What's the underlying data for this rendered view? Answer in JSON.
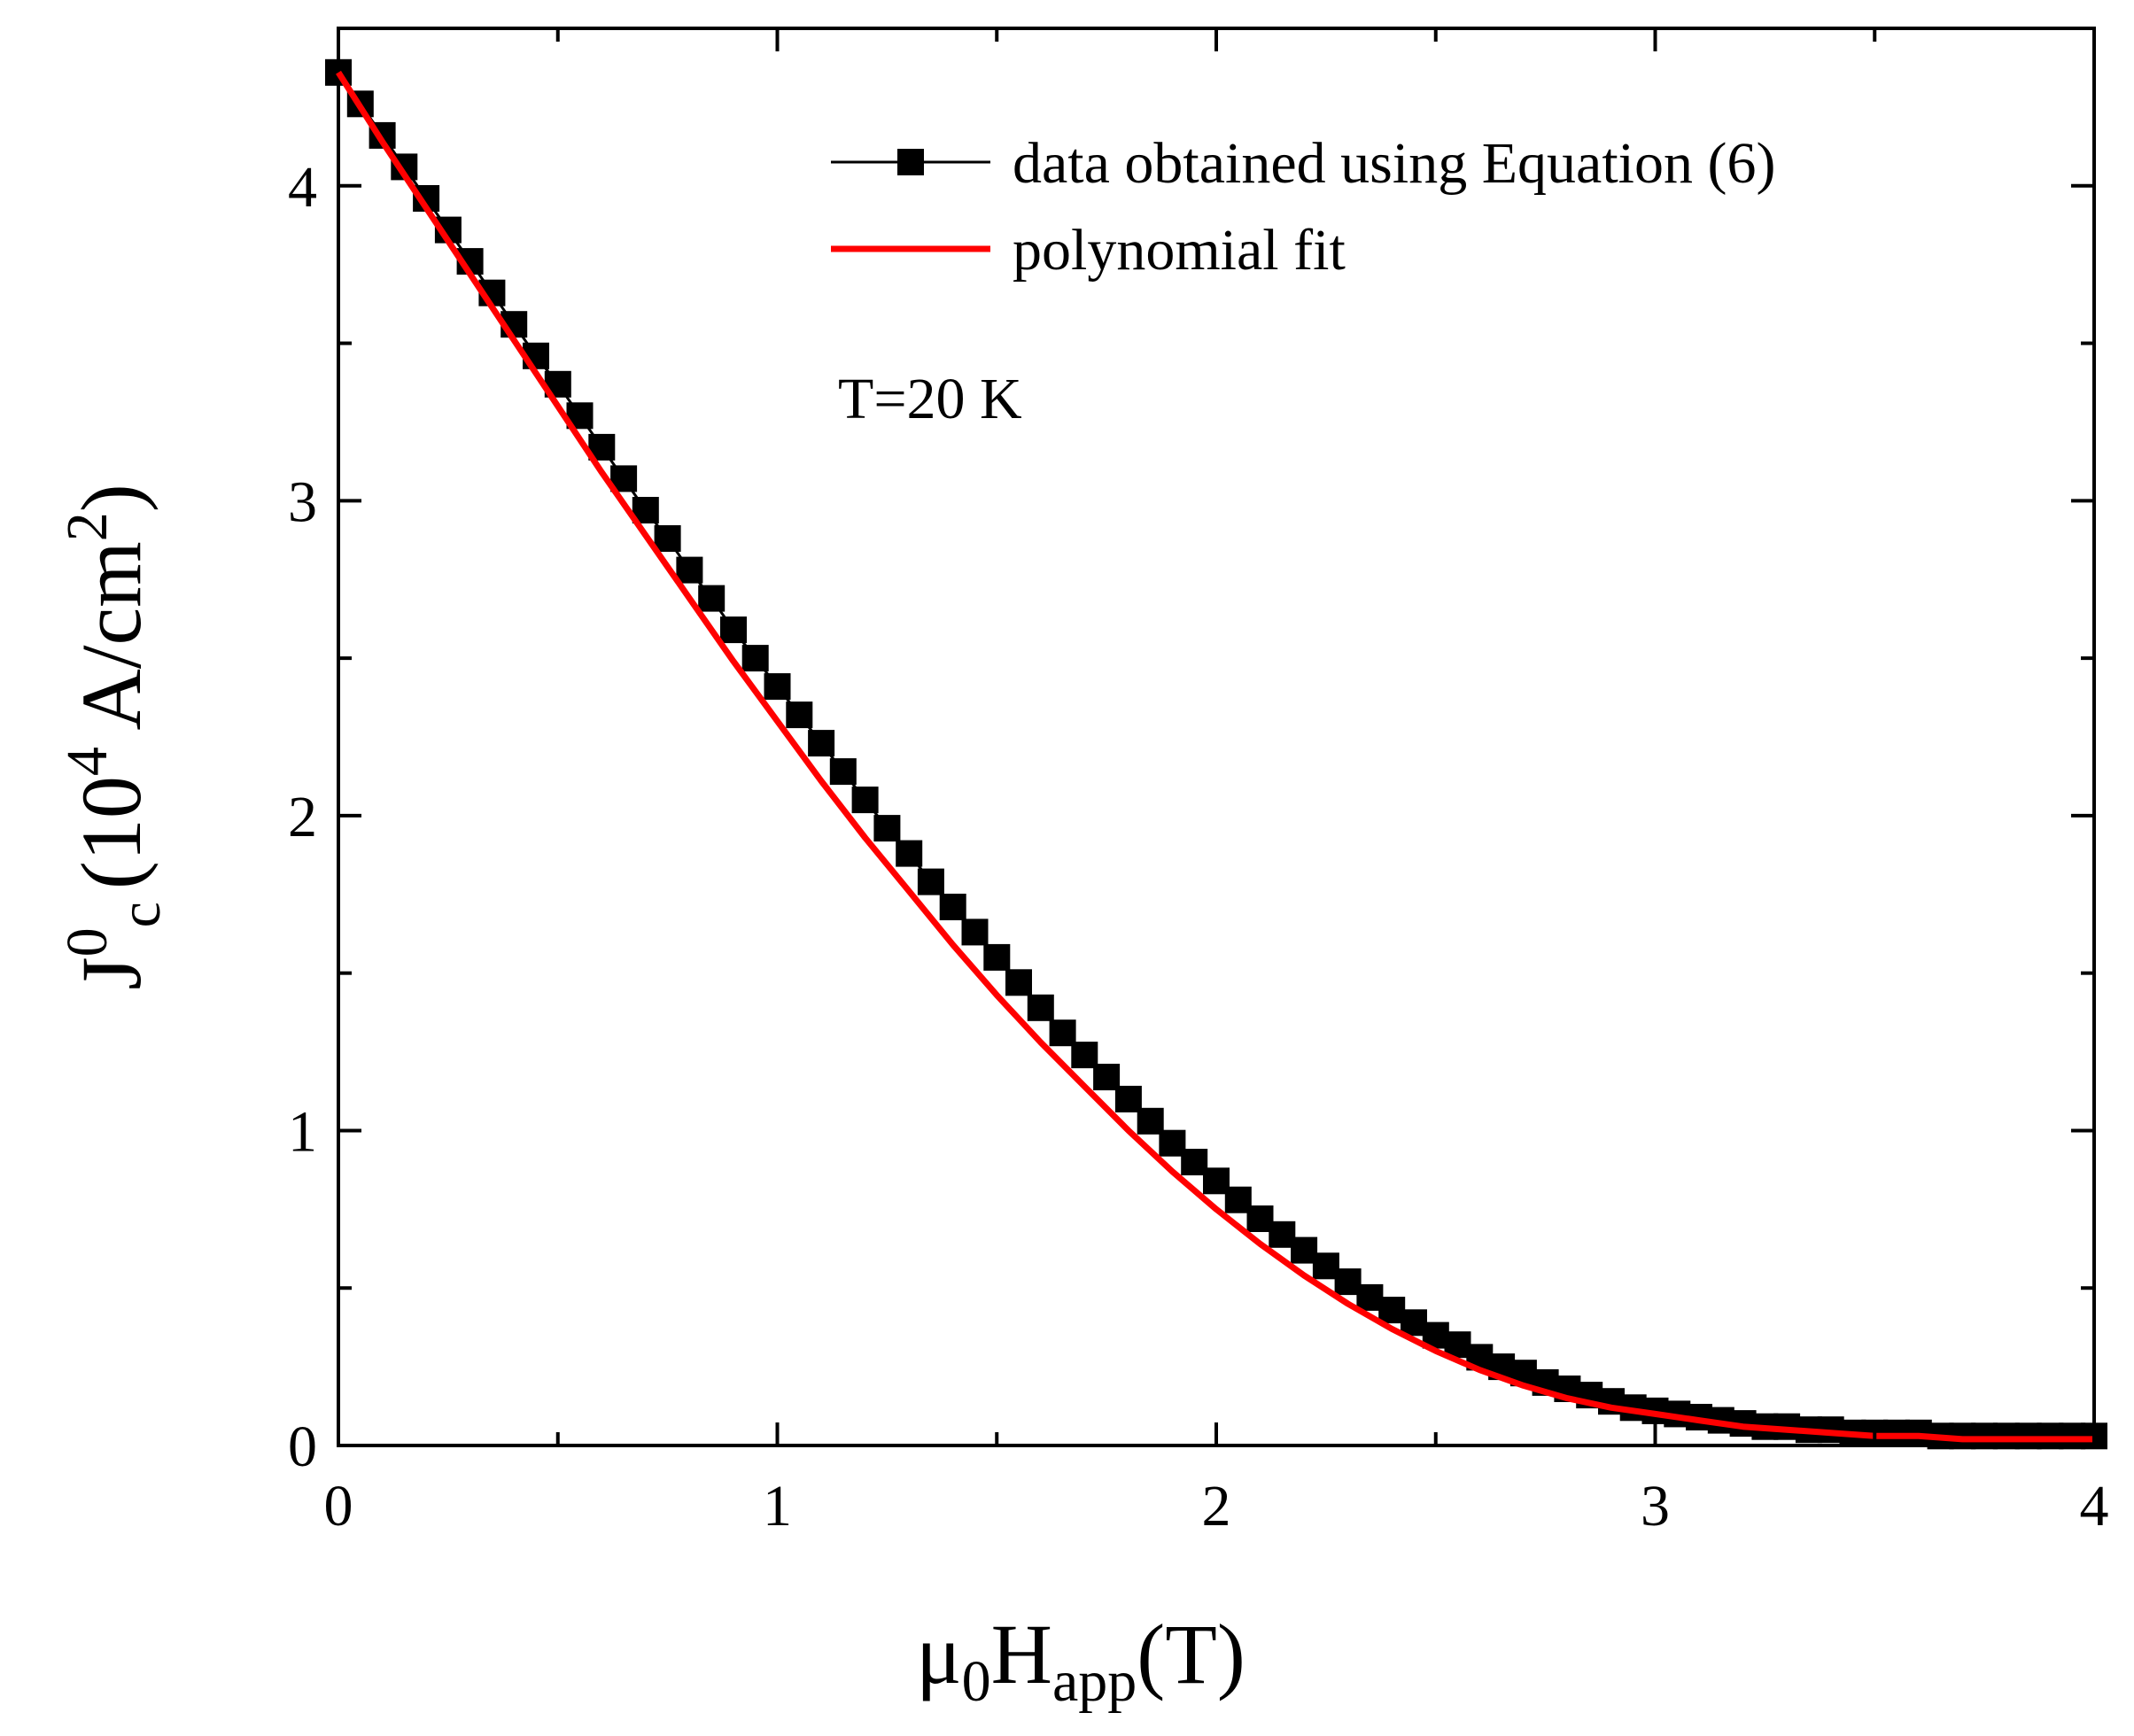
{
  "chart_data": {
    "type": "scatter",
    "title": "",
    "annotation": "T=20 K",
    "xlabel": {
      "mu": "μ",
      "sub0": "0",
      "h": "H",
      "sub_app": "app",
      "unit": "(T)"
    },
    "ylabel": {
      "j": "J",
      "sup0": "0",
      "sub_c": "c",
      "unit_open": "(10",
      "sup4": "4",
      "unit_mid": " A/cm",
      "sup2": "2",
      "unit_close": ")"
    },
    "xlim": [
      0,
      4
    ],
    "ylim": [
      0,
      4.5
    ],
    "xticks": [
      0,
      1,
      2,
      3,
      4
    ],
    "xticks_minor": [
      0.5,
      1.5,
      2.5,
      3.5
    ],
    "yticks": [
      0,
      1,
      2,
      3,
      4
    ],
    "yticks_minor": [
      0.5,
      1.5,
      2.5,
      3.5
    ],
    "legend_position": "top-right",
    "colors": {
      "data": "#000000",
      "fit": "#ff0000",
      "axis": "#000000"
    },
    "series": [
      {
        "name": "data obtained using Equation (6)",
        "style": "line-square-markers",
        "x": [
          0.0,
          0.05,
          0.1,
          0.15,
          0.2,
          0.25,
          0.3,
          0.35,
          0.4,
          0.45,
          0.5,
          0.55,
          0.6,
          0.65,
          0.7,
          0.75,
          0.8,
          0.85,
          0.9,
          0.95,
          1.0,
          1.05,
          1.1,
          1.15,
          1.2,
          1.25,
          1.3,
          1.35,
          1.4,
          1.45,
          1.5,
          1.55,
          1.6,
          1.65,
          1.7,
          1.75,
          1.8,
          1.85,
          1.9,
          1.95,
          2.0,
          2.05,
          2.1,
          2.15,
          2.2,
          2.25,
          2.3,
          2.35,
          2.4,
          2.45,
          2.5,
          2.55,
          2.6,
          2.65,
          2.7,
          2.75,
          2.8,
          2.85,
          2.9,
          2.95,
          3.0,
          3.05,
          3.1,
          3.15,
          3.2,
          3.25,
          3.3,
          3.35,
          3.4,
          3.45,
          3.5,
          3.55,
          3.6,
          3.65,
          3.7,
          3.75,
          3.8,
          3.85,
          3.9,
          3.95,
          4.0
        ],
        "y": [
          4.36,
          4.26,
          4.16,
          4.06,
          3.96,
          3.86,
          3.76,
          3.66,
          3.56,
          3.46,
          3.37,
          3.27,
          3.17,
          3.07,
          2.97,
          2.88,
          2.78,
          2.69,
          2.59,
          2.5,
          2.41,
          2.32,
          2.23,
          2.14,
          2.05,
          1.96,
          1.88,
          1.79,
          1.71,
          1.63,
          1.55,
          1.47,
          1.39,
          1.31,
          1.24,
          1.17,
          1.1,
          1.03,
          0.96,
          0.9,
          0.84,
          0.78,
          0.72,
          0.67,
          0.62,
          0.57,
          0.52,
          0.47,
          0.43,
          0.39,
          0.35,
          0.32,
          0.28,
          0.25,
          0.23,
          0.2,
          0.18,
          0.16,
          0.14,
          0.12,
          0.11,
          0.1,
          0.09,
          0.08,
          0.07,
          0.06,
          0.06,
          0.05,
          0.05,
          0.04,
          0.04,
          0.04,
          0.04,
          0.03,
          0.03,
          0.03,
          0.03,
          0.03,
          0.03,
          0.03,
          0.03
        ]
      },
      {
        "name": "polynomial fit",
        "style": "line",
        "x": [
          0.0,
          0.1,
          0.2,
          0.3,
          0.4,
          0.5,
          0.6,
          0.7,
          0.8,
          0.9,
          1.0,
          1.1,
          1.2,
          1.3,
          1.4,
          1.5,
          1.6,
          1.7,
          1.8,
          1.9,
          2.0,
          2.1,
          2.2,
          2.3,
          2.4,
          2.5,
          2.6,
          2.7,
          2.8,
          2.9,
          3.0,
          3.1,
          3.2,
          3.3,
          3.4,
          3.5,
          3.6,
          3.7,
          3.8,
          3.9,
          4.0
        ],
        "y": [
          4.36,
          4.14,
          3.93,
          3.72,
          3.51,
          3.3,
          3.09,
          2.89,
          2.69,
          2.49,
          2.3,
          2.11,
          1.93,
          1.76,
          1.59,
          1.43,
          1.28,
          1.14,
          1.0,
          0.87,
          0.75,
          0.64,
          0.54,
          0.45,
          0.37,
          0.3,
          0.24,
          0.19,
          0.15,
          0.12,
          0.1,
          0.08,
          0.06,
          0.05,
          0.04,
          0.03,
          0.03,
          0.02,
          0.02,
          0.02,
          0.02
        ]
      }
    ]
  }
}
